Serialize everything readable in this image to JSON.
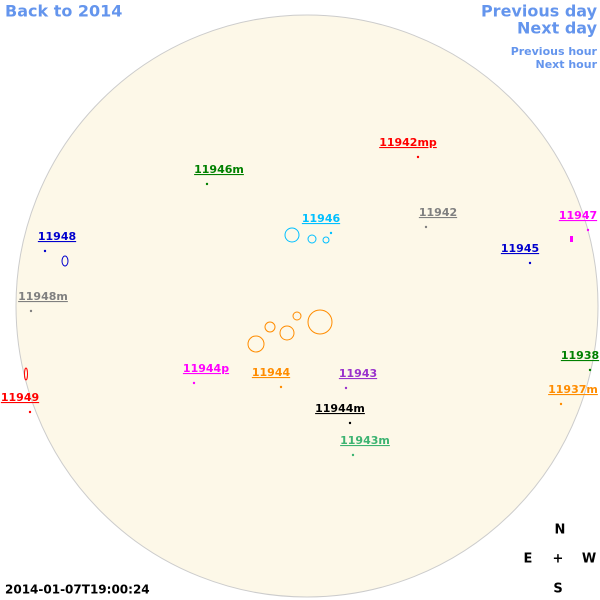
{
  "nav": {
    "back": "Back to 2014",
    "previous_day": "Previous day",
    "next_day": "Next day",
    "previous_hour": "Previous hour",
    "next_hour": "Next hour"
  },
  "timestamp": "2014-01-07T19:00:24",
  "compass": {
    "north": "N",
    "east": "E",
    "center": "+",
    "west": "W",
    "south": "S"
  },
  "regions": [
    {
      "label": "11942mp",
      "color": "#ff0000"
    },
    {
      "label": "11946m",
      "color": "#008000"
    },
    {
      "label": "11946",
      "color": "#00bfff"
    },
    {
      "label": "11942",
      "color": "#808080"
    },
    {
      "label": "11947",
      "color": "#ff00ff"
    },
    {
      "label": "11948",
      "color": "#0000cd"
    },
    {
      "label": "11945",
      "color": "#0000cd"
    },
    {
      "label": "11948m",
      "color": "#808080"
    },
    {
      "label": "11938",
      "color": "#008000"
    },
    {
      "label": "11944p",
      "color": "#ff00ff"
    },
    {
      "label": "11944",
      "color": "#ff8c00"
    },
    {
      "label": "11943",
      "color": "#9932cc"
    },
    {
      "label": "11949",
      "color": "#ff0000"
    },
    {
      "label": "11937m",
      "color": "#ff8c00"
    },
    {
      "label": "11944m",
      "color": "#000000"
    },
    {
      "label": "11943m",
      "color": "#3cb371"
    }
  ]
}
